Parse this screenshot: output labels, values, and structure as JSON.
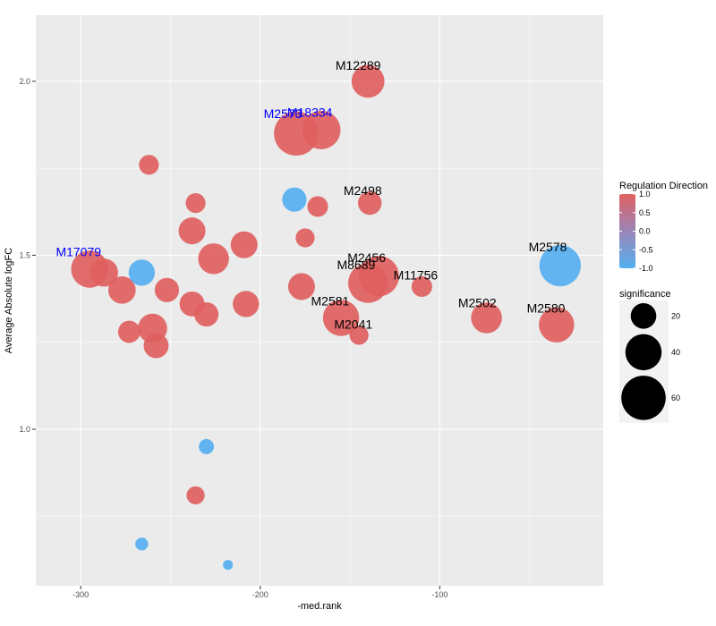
{
  "chart_data": {
    "type": "scatter",
    "title": "",
    "xlabel": "-med.rank",
    "ylabel": "Average Absolute logFC",
    "xlim": [
      -325,
      -9
    ],
    "ylim": [
      0.55,
      2.19
    ],
    "x_ticks": [
      -300,
      -200,
      -100
    ],
    "x_tick_labels": [
      "-300",
      "-200",
      "-100"
    ],
    "y_ticks": [
      1.0,
      1.5,
      2.0
    ],
    "y_tick_labels": [
      "1.0",
      "1.5",
      "2.0"
    ],
    "grid": true,
    "color_legend": {
      "title": "Regulation Direction",
      "ticks": [
        1.0,
        0.5,
        0.0,
        -0.5,
        -1.0
      ],
      "tick_labels": [
        "1.0",
        "0.5",
        "0.0",
        "-0.5",
        "-1.0"
      ],
      "high_color": "#e06060",
      "low_color": "#55aff0"
    },
    "size_legend": {
      "title": "significance",
      "values": [
        20,
        40,
        60
      ],
      "labels": [
        "20",
        "40",
        "60"
      ]
    },
    "points": [
      {
        "x": -140,
        "y": 2.0,
        "sig": 33,
        "dir": 1,
        "label": "M12289",
        "label_color": "#000000"
      },
      {
        "x": -166,
        "y": 1.86,
        "sig": 45,
        "dir": 1,
        "label": "M18334",
        "label_color": "#0000ff"
      },
      {
        "x": -180,
        "y": 1.85,
        "sig": 60,
        "dir": 1,
        "label": "M2573",
        "label_color": "#0000ff"
      },
      {
        "x": -262,
        "y": 1.76,
        "sig": 12,
        "dir": 1,
        "label": "",
        "label_color": "#000000"
      },
      {
        "x": -181,
        "y": 1.66,
        "sig": 18,
        "dir": -1,
        "label": "",
        "label_color": "#000000"
      },
      {
        "x": -139,
        "y": 1.65,
        "sig": 17,
        "dir": 1,
        "label": "M2498",
        "label_color": "#000000"
      },
      {
        "x": -236,
        "y": 1.65,
        "sig": 12,
        "dir": 1,
        "label": "",
        "label_color": "#000000"
      },
      {
        "x": -168,
        "y": 1.64,
        "sig": 13,
        "dir": 1,
        "label": "",
        "label_color": "#000000"
      },
      {
        "x": -238,
        "y": 1.57,
        "sig": 22,
        "dir": 1,
        "label": "",
        "label_color": "#000000"
      },
      {
        "x": -175,
        "y": 1.55,
        "sig": 11,
        "dir": 1,
        "label": "",
        "label_color": "#000000"
      },
      {
        "x": -209,
        "y": 1.53,
        "sig": 22,
        "dir": 1,
        "label": "",
        "label_color": "#000000"
      },
      {
        "x": -226,
        "y": 1.49,
        "sig": 29,
        "dir": 1,
        "label": "",
        "label_color": "#000000"
      },
      {
        "x": -295,
        "y": 1.46,
        "sig": 42,
        "dir": 1,
        "label": "M17079",
        "label_color": "#0000ff"
      },
      {
        "x": -287,
        "y": 1.45,
        "sig": 24,
        "dir": 1,
        "label": "",
        "label_color": "#000000"
      },
      {
        "x": -266,
        "y": 1.45,
        "sig": 21,
        "dir": -1,
        "label": "",
        "label_color": "#000000"
      },
      {
        "x": -33,
        "y": 1.47,
        "sig": 52,
        "dir": -1,
        "label": "M2578",
        "label_color": "#000000"
      },
      {
        "x": -134,
        "y": 1.44,
        "sig": 50,
        "dir": 1,
        "label": "M2456",
        "label_color": "#000000"
      },
      {
        "x": -140,
        "y": 1.42,
        "sig": 48,
        "dir": 1,
        "label": "M8689",
        "label_color": "#000000"
      },
      {
        "x": -110,
        "y": 1.41,
        "sig": 13,
        "dir": 1,
        "label": "M11756",
        "label_color": "#000000"
      },
      {
        "x": -277,
        "y": 1.4,
        "sig": 23,
        "dir": 1,
        "label": "",
        "label_color": "#000000"
      },
      {
        "x": -252,
        "y": 1.4,
        "sig": 18,
        "dir": 1,
        "label": "",
        "label_color": "#000000"
      },
      {
        "x": -177,
        "y": 1.41,
        "sig": 22,
        "dir": 1,
        "label": "",
        "label_color": "#000000"
      },
      {
        "x": -238,
        "y": 1.36,
        "sig": 19,
        "dir": 1,
        "label": "",
        "label_color": "#000000"
      },
      {
        "x": -208,
        "y": 1.36,
        "sig": 21,
        "dir": 1,
        "label": "",
        "label_color": "#000000"
      },
      {
        "x": -230,
        "y": 1.33,
        "sig": 18,
        "dir": 1,
        "label": "",
        "label_color": "#000000"
      },
      {
        "x": -155,
        "y": 1.32,
        "sig": 40,
        "dir": 1,
        "label": "M2581",
        "label_color": "#000000"
      },
      {
        "x": -74,
        "y": 1.32,
        "sig": 29,
        "dir": 1,
        "label": "M2502",
        "label_color": "#000000"
      },
      {
        "x": -35,
        "y": 1.3,
        "sig": 38,
        "dir": 1,
        "label": "M2580",
        "label_color": "#000000"
      },
      {
        "x": -260,
        "y": 1.29,
        "sig": 26,
        "dir": 1,
        "label": "",
        "label_color": "#000000"
      },
      {
        "x": -273,
        "y": 1.28,
        "sig": 15,
        "dir": 1,
        "label": "",
        "label_color": "#000000"
      },
      {
        "x": -145,
        "y": 1.27,
        "sig": 11,
        "dir": 1,
        "label": "M2041",
        "label_color": "#000000"
      },
      {
        "x": -258,
        "y": 1.24,
        "sig": 19,
        "dir": 1,
        "label": "",
        "label_color": "#000000"
      },
      {
        "x": -230,
        "y": 0.95,
        "sig": 7,
        "dir": -1,
        "label": "",
        "label_color": "#000000"
      },
      {
        "x": -236,
        "y": 0.81,
        "sig": 10,
        "dir": 1,
        "label": "",
        "label_color": "#000000"
      },
      {
        "x": -266,
        "y": 0.67,
        "sig": 5,
        "dir": -1,
        "label": "",
        "label_color": "#000000"
      },
      {
        "x": -218,
        "y": 0.61,
        "sig": 3,
        "dir": -1,
        "label": "",
        "label_color": "#000000"
      }
    ]
  }
}
